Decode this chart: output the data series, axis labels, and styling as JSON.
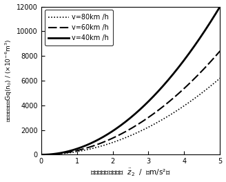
{
  "xlim": [
    0,
    5
  ],
  "ylim": [
    0,
    12000
  ],
  "xticks": [
    0,
    1,
    2,
    3,
    4,
    5
  ],
  "yticks": [
    0,
    2000,
    4000,
    6000,
    8000,
    10000,
    12000
  ],
  "legend_entries": [
    "v=80km /h",
    "v=60km /h",
    "v=40km /h"
  ],
  "background_color": "#ffffff",
  "line_color": "#000000",
  "coeff_80": 248,
  "coeff_60": 336,
  "coeff_40": 480,
  "ylabel_cn": "路面功率谱密度Gq(n₀) / (×10⁻⁶m³)",
  "xlabel_cn": "车身垂直振动加速度  ẓ₂  /  （m/s²）"
}
